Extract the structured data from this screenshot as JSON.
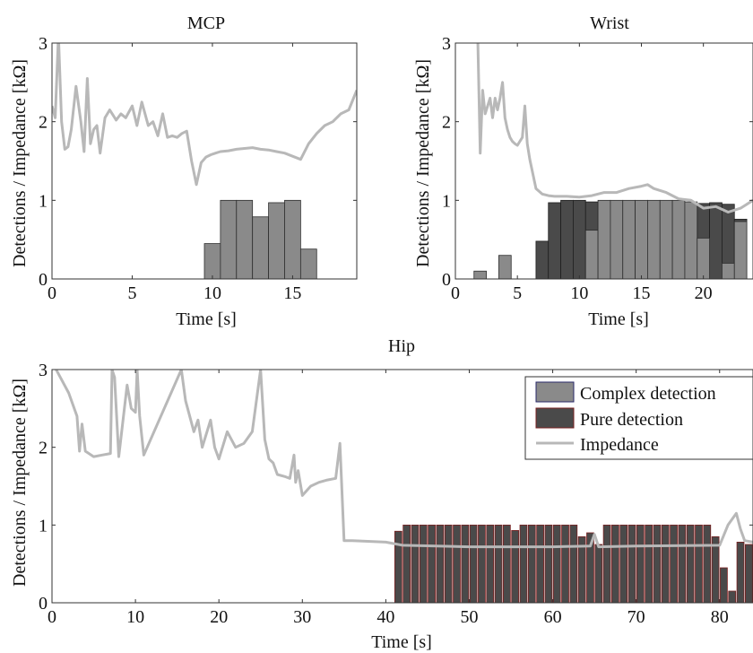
{
  "chart_data": [
    {
      "type": "bar",
      "title": "MCP",
      "xlabel": "Time [s]",
      "ylabel": "Detections / Impedance [kΩ]",
      "xlim": [
        0,
        19
      ],
      "ylim": [
        0,
        3
      ],
      "xticks": [
        0,
        5,
        10,
        15
      ],
      "yticks": [
        0,
        1,
        2,
        3
      ],
      "bar_width": 1,
      "complex_bars": [
        [
          10,
          0.45
        ],
        [
          11,
          1.0
        ],
        [
          12,
          1.0
        ],
        [
          13,
          0.79
        ],
        [
          14,
          0.97
        ],
        [
          15,
          1.0
        ],
        [
          16,
          0.38
        ]
      ],
      "pure_bars": [],
      "impedance": {
        "x": [
          0,
          0.2,
          0.4,
          0.6,
          0.8,
          1.0,
          1.2,
          1.5,
          1.8,
          2.0,
          2.2,
          2.4,
          2.6,
          2.8,
          3.0,
          3.3,
          3.6,
          4.0,
          4.3,
          4.6,
          5.0,
          5.3,
          5.6,
          6.0,
          6.3,
          6.6,
          6.9,
          7.2,
          7.5,
          7.8,
          8.1,
          8.4,
          8.7,
          9.0,
          9.3,
          9.6,
          9.9,
          10.2,
          10.5,
          11.0,
          11.5,
          12.0,
          12.5,
          13.0,
          13.5,
          14.0,
          14.5,
          15.0,
          15.5,
          16.0,
          16.5,
          17.0,
          17.5,
          18.0,
          18.5,
          19.0
        ],
        "y": [
          2.2,
          2.05,
          3.1,
          2.0,
          1.65,
          1.68,
          1.9,
          2.45,
          2.0,
          1.62,
          2.55,
          1.72,
          1.9,
          1.95,
          1.6,
          2.05,
          2.15,
          2.02,
          2.1,
          2.05,
          2.2,
          1.95,
          2.25,
          1.95,
          2.0,
          1.82,
          2.1,
          1.8,
          1.82,
          1.8,
          1.85,
          1.88,
          1.5,
          1.2,
          1.48,
          1.55,
          1.58,
          1.6,
          1.62,
          1.63,
          1.65,
          1.66,
          1.67,
          1.65,
          1.64,
          1.62,
          1.6,
          1.56,
          1.52,
          1.72,
          1.85,
          1.95,
          2.0,
          2.1,
          2.15,
          2.4
        ]
      }
    },
    {
      "type": "bar",
      "title": "Wrist",
      "xlabel": "Time [s]",
      "ylabel": "Detections / Impedance [kΩ]",
      "xlim": [
        0,
        24
      ],
      "ylim": [
        0,
        3
      ],
      "xticks": [
        0,
        5,
        10,
        15,
        20
      ],
      "yticks": [
        0,
        1,
        2,
        3
      ],
      "bar_width": 1,
      "complex_bars": [
        [
          2,
          0.1
        ],
        [
          4,
          0.3
        ],
        [
          11,
          0.62
        ],
        [
          12,
          1.0
        ],
        [
          13,
          1.0
        ],
        [
          14,
          1.0
        ],
        [
          15,
          1.0
        ],
        [
          16,
          1.0
        ],
        [
          17,
          1.0
        ],
        [
          18,
          1.0
        ],
        [
          19,
          0.98
        ],
        [
          20,
          0.52
        ],
        [
          22,
          0.2
        ],
        [
          23,
          0.73
        ]
      ],
      "pure_bars": [
        [
          7,
          0.48
        ],
        [
          8,
          0.97
        ],
        [
          9,
          1.0
        ],
        [
          10,
          1.0
        ],
        [
          11,
          0.98
        ],
        [
          19,
          0.22
        ],
        [
          20,
          0.96
        ],
        [
          21,
          0.97
        ],
        [
          22,
          0.95
        ],
        [
          23,
          0.76
        ]
      ],
      "impedance": {
        "x": [
          1.8,
          2.0,
          2.2,
          2.4,
          2.6,
          2.8,
          3.0,
          3.2,
          3.4,
          3.6,
          3.8,
          4.0,
          4.2,
          4.4,
          4.6,
          4.8,
          5.0,
          5.2,
          5.4,
          5.6,
          5.8,
          6.0,
          6.5,
          7.0,
          7.5,
          8.0,
          9.0,
          10.0,
          11.0,
          12.0,
          13.0,
          14.0,
          15.0,
          15.5,
          16.0,
          17.0,
          18.0,
          19.0,
          20.0,
          21.0,
          22.0,
          23.0,
          24.0
        ],
        "y": [
          3.1,
          1.6,
          2.4,
          2.1,
          2.2,
          2.3,
          2.05,
          2.3,
          2.15,
          2.3,
          2.5,
          2.05,
          1.9,
          1.8,
          1.75,
          1.72,
          1.7,
          1.75,
          1.8,
          2.2,
          1.72,
          1.52,
          1.15,
          1.08,
          1.06,
          1.05,
          1.05,
          1.04,
          1.06,
          1.1,
          1.1,
          1.15,
          1.18,
          1.2,
          1.15,
          1.1,
          1.02,
          1.0,
          0.9,
          0.92,
          0.85,
          0.9,
          1.0
        ]
      }
    },
    {
      "type": "bar",
      "title": "Hip",
      "xlabel": "Time [s]",
      "ylabel": "Detections / Impedance [kΩ]",
      "xlim": [
        0,
        84
      ],
      "ylim": [
        0,
        3
      ],
      "xticks": [
        0,
        10,
        20,
        30,
        40,
        50,
        60,
        70,
        80
      ],
      "yticks": [
        0,
        1,
        2,
        3
      ],
      "bar_width": 0.85,
      "complex_bars": [],
      "pure_bars": [
        [
          41.5,
          0.92
        ],
        [
          42.5,
          1.0
        ],
        [
          43.5,
          1.0
        ],
        [
          44.5,
          1.0
        ],
        [
          45.5,
          1.0
        ],
        [
          46.5,
          1.0
        ],
        [
          47.5,
          1.0
        ],
        [
          48.5,
          1.0
        ],
        [
          49.5,
          1.0
        ],
        [
          50.5,
          1.0
        ],
        [
          51.5,
          1.0
        ],
        [
          52.5,
          1.0
        ],
        [
          53.5,
          1.0
        ],
        [
          54.5,
          1.0
        ],
        [
          55.5,
          0.93
        ],
        [
          56.5,
          1.0
        ],
        [
          57.5,
          1.0
        ],
        [
          58.5,
          1.0
        ],
        [
          59.5,
          1.0
        ],
        [
          60.5,
          1.0
        ],
        [
          61.5,
          1.0
        ],
        [
          62.5,
          1.0
        ],
        [
          63.5,
          0.85
        ],
        [
          64.5,
          0.9
        ],
        [
          65.5,
          0.75
        ],
        [
          66.5,
          1.0
        ],
        [
          67.5,
          1.0
        ],
        [
          68.5,
          1.0
        ],
        [
          69.5,
          1.0
        ],
        [
          70.5,
          1.0
        ],
        [
          71.5,
          1.0
        ],
        [
          72.5,
          1.0
        ],
        [
          73.5,
          1.0
        ],
        [
          74.5,
          1.0
        ],
        [
          75.5,
          1.0
        ],
        [
          76.5,
          1.0
        ],
        [
          77.5,
          1.0
        ],
        [
          78.5,
          1.0
        ],
        [
          79.5,
          0.85
        ],
        [
          80.5,
          0.45
        ],
        [
          81.5,
          0.15
        ],
        [
          82.5,
          0.78
        ],
        [
          83.5,
          0.75
        ]
      ],
      "impedance": {
        "x": [
          0,
          1,
          2,
          3,
          3.3,
          3.6,
          4,
          5,
          6,
          7,
          7.2,
          7.5,
          8,
          9,
          9.5,
          10,
          10.2,
          10.5,
          11,
          15.5,
          16,
          17,
          17.5,
          18,
          19,
          19.5,
          20,
          21,
          22,
          23,
          24,
          25,
          25.5,
          26,
          26.5,
          27,
          28,
          28.5,
          29,
          29.2,
          29.5,
          30,
          31,
          32,
          33,
          34,
          34.5,
          35,
          36,
          40,
          41,
          42,
          50,
          60,
          64.5,
          65,
          65.5,
          70,
          80,
          81,
          82,
          82.5,
          83,
          84
        ],
        "y": [
          3.1,
          2.9,
          2.7,
          2.4,
          1.95,
          2.3,
          1.95,
          1.88,
          1.9,
          1.92,
          3.0,
          2.9,
          1.88,
          2.8,
          2.5,
          2.45,
          3.0,
          2.4,
          1.9,
          3.0,
          2.6,
          2.2,
          2.35,
          2.0,
          2.35,
          2.0,
          1.85,
          2.2,
          2.0,
          2.05,
          2.2,
          3.0,
          2.1,
          1.85,
          1.8,
          1.65,
          1.62,
          1.6,
          1.9,
          1.55,
          1.7,
          1.38,
          1.5,
          1.55,
          1.58,
          1.6,
          2.05,
          0.8,
          0.8,
          0.78,
          0.76,
          0.74,
          0.72,
          0.72,
          0.73,
          0.88,
          0.72,
          0.73,
          0.74,
          1.0,
          1.15,
          0.95,
          0.8,
          0.78
        ]
      },
      "legend": {
        "placement": "top-right",
        "entries": [
          "Complex detection",
          "Pure detection",
          "Impedance"
        ]
      }
    }
  ],
  "colors": {
    "complex": "#8a8a8a",
    "pure": "#4a4a4a",
    "pure_edge_hip": "#7a2020",
    "impedance": "#b8b8b8",
    "axis": "#333333"
  }
}
